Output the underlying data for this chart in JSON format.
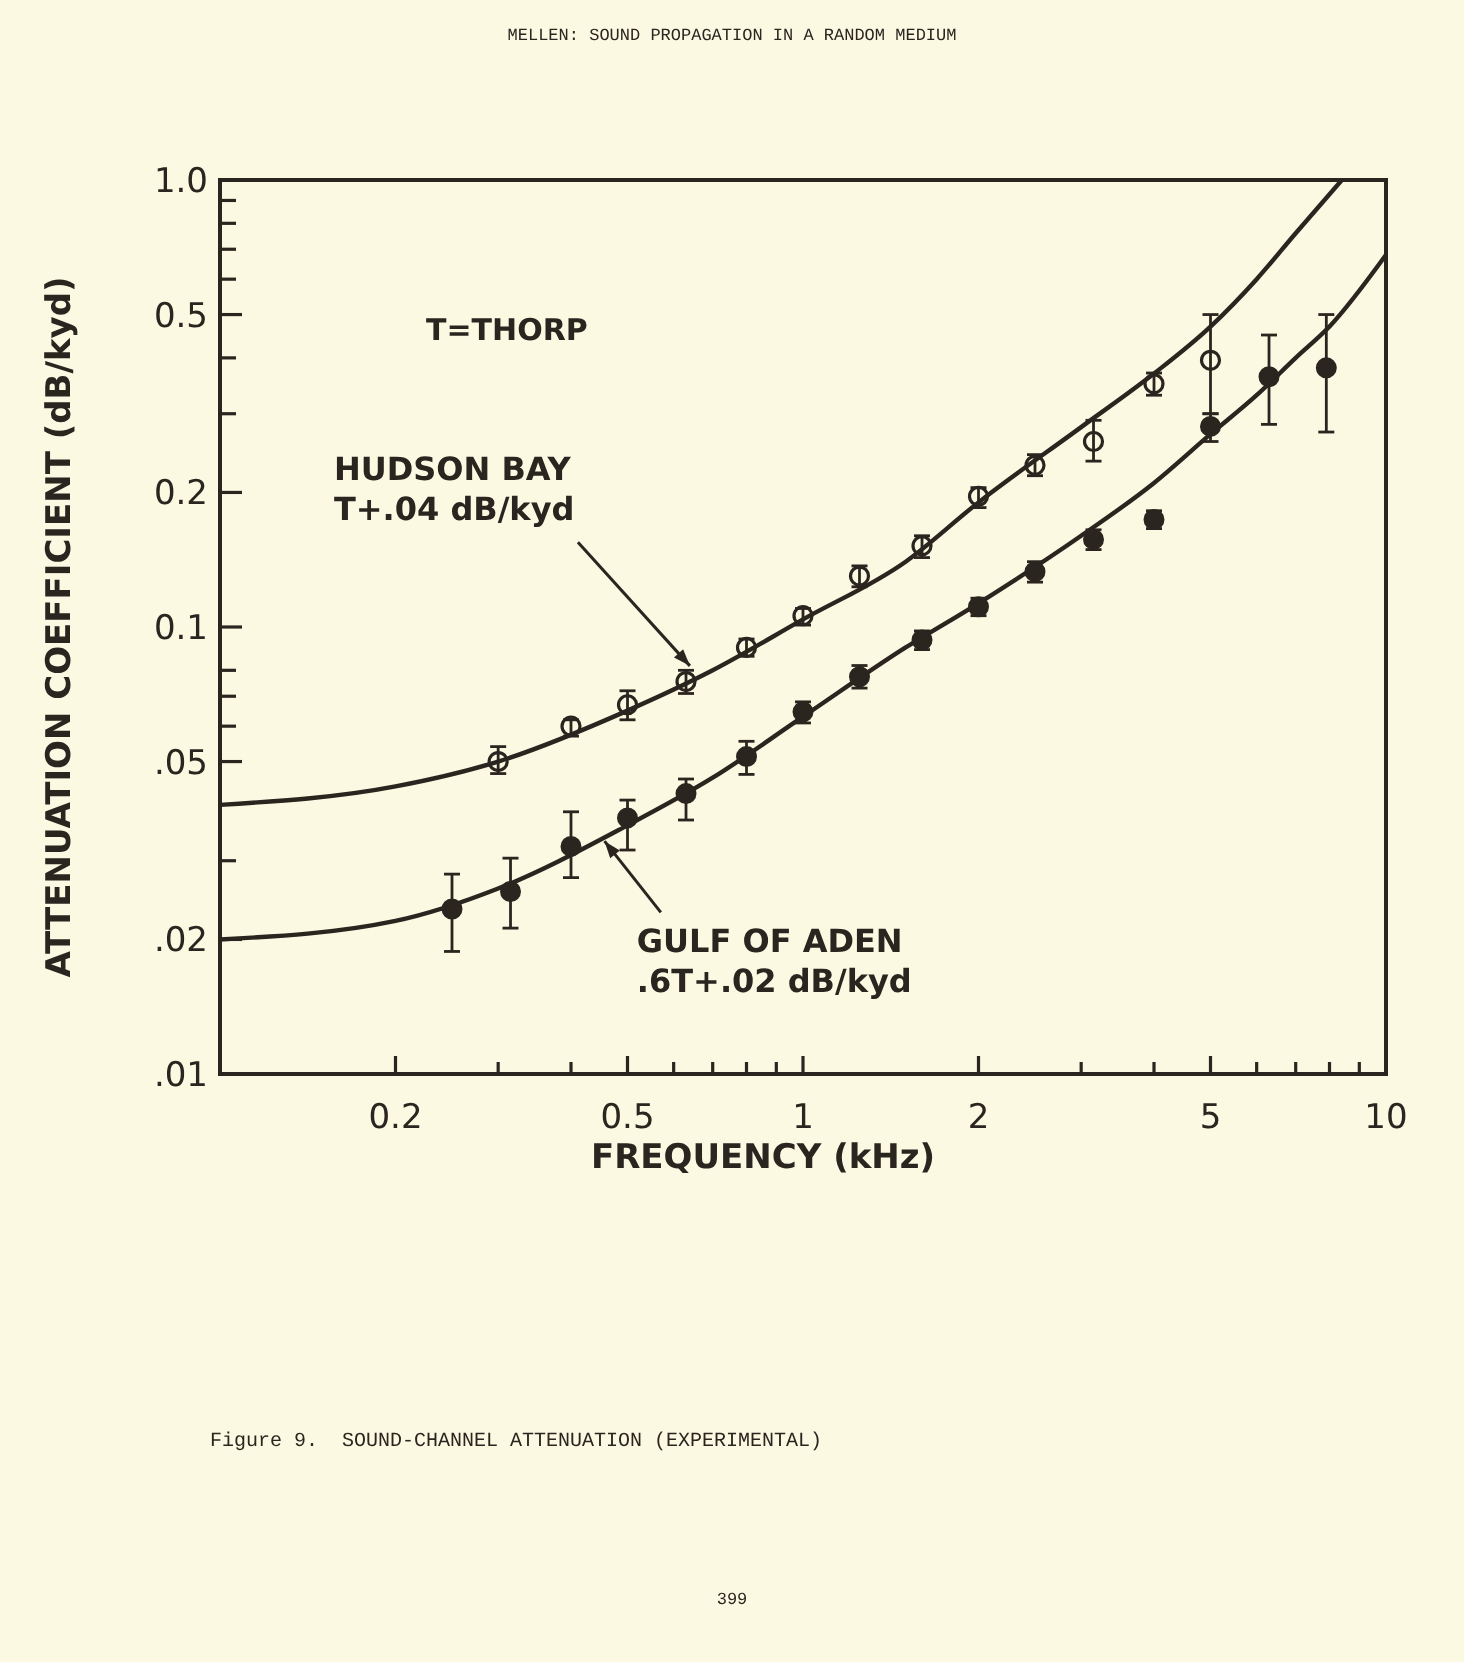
{
  "chart_data": {
    "type": "scatter",
    "title": "Figure 9.  SOUND-CHANNEL ATTENUATION (EXPERIMENTAL)",
    "xlabel": "FREQUENCY (kHz)",
    "ylabel": "ATTENUATION COEFFICIENT (dB/kyd)",
    "log": "xy",
    "grid": false,
    "xlim": [
      0.1,
      10
    ],
    "ylim": [
      0.01,
      1.0
    ],
    "xticks": [
      {
        "value": 0.2,
        "label": "0.2"
      },
      {
        "value": 0.3,
        "label": null
      },
      {
        "value": 0.4,
        "label": null
      },
      {
        "value": 0.5,
        "label": "0.5"
      },
      {
        "value": 0.6,
        "label": null
      },
      {
        "value": 0.7,
        "label": null
      },
      {
        "value": 0.8,
        "label": null
      },
      {
        "value": 0.9,
        "label": null
      },
      {
        "value": 1,
        "label": "1"
      },
      {
        "value": 2,
        "label": "2"
      },
      {
        "value": 3,
        "label": null
      },
      {
        "value": 4,
        "label": null
      },
      {
        "value": 5,
        "label": "5"
      },
      {
        "value": 6,
        "label": null
      },
      {
        "value": 7,
        "label": null
      },
      {
        "value": 8,
        "label": null
      },
      {
        "value": 9,
        "label": null
      },
      {
        "value": 10,
        "label": "10"
      }
    ],
    "yticks": [
      {
        "value": 0.01,
        "label": ".01"
      },
      {
        "value": 0.02,
        "label": ".02"
      },
      {
        "value": 0.03,
        "label": null
      },
      {
        "value": 0.05,
        "label": ".05"
      },
      {
        "value": 0.06,
        "label": null
      },
      {
        "value": 0.07,
        "label": null
      },
      {
        "value": 0.08,
        "label": null
      },
      {
        "value": 0.1,
        "label": "0.1"
      },
      {
        "value": 0.2,
        "label": "0.2"
      },
      {
        "value": 0.3,
        "label": null
      },
      {
        "value": 0.4,
        "label": null
      },
      {
        "value": 0.5,
        "label": "0.5"
      },
      {
        "value": 0.6,
        "label": null
      },
      {
        "value": 0.7,
        "label": null
      },
      {
        "value": 0.8,
        "label": null
      },
      {
        "value": 0.9,
        "label": null
      },
      {
        "value": 1.0,
        "label": "1.0"
      }
    ],
    "series": [
      {
        "type": "line",
        "color": "#2b2520",
        "line_style": "solid",
        "x": [
          0.1,
          0.2,
          0.3,
          0.5,
          0.7,
          1,
          1.5,
          2,
          3,
          4,
          5,
          6,
          7,
          8.4
        ],
        "values": [
          0.04,
          0.044,
          0.05,
          0.065,
          0.08,
          0.104,
          0.14,
          0.19,
          0.28,
          0.369,
          0.47,
          0.6,
          0.76,
          1.0
        ]
      },
      {
        "type": "line",
        "color": "#2b2520",
        "line_style": "solid",
        "x": [
          0.1,
          0.2,
          0.3,
          0.5,
          0.7,
          1,
          1.5,
          2,
          3,
          4,
          5,
          6,
          7,
          8,
          10
        ],
        "values": [
          0.02,
          0.022,
          0.026,
          0.036,
          0.046,
          0.063,
          0.09,
          0.113,
          0.16,
          0.21,
          0.27,
          0.33,
          0.4,
          0.47,
          0.68
        ]
      },
      {
        "type": "scatter",
        "color": "#2b2520",
        "marker": "circle-open",
        "x": [
          0.3,
          0.4,
          0.5,
          0.63,
          0.8,
          1,
          1.25,
          1.6,
          2,
          2.5,
          3.15,
          4,
          5
        ],
        "values": [
          0.05,
          0.06,
          0.067,
          0.0755,
          0.09,
          0.106,
          0.13,
          0.152,
          0.196,
          0.23,
          0.26,
          0.35,
          0.395
        ],
        "errors": [
          [
            0.047,
            0.054
          ],
          [
            0.057,
            0.062
          ],
          [
            0.062,
            0.072
          ],
          [
            0.071,
            0.08
          ],
          [
            0.086,
            0.094
          ],
          [
            0.101,
            0.11
          ],
          [
            0.123,
            0.137
          ],
          [
            0.143,
            0.16
          ],
          [
            0.185,
            0.205
          ],
          [
            0.218,
            0.243
          ],
          [
            0.235,
            0.29
          ],
          [
            0.33,
            0.37
          ],
          [
            0.3,
            0.5
          ]
        ]
      },
      {
        "type": "scatter",
        "color": "#2b2520",
        "marker": "circle",
        "x": [
          0.25,
          0.315,
          0.4,
          0.5,
          0.63,
          0.8,
          1,
          1.25,
          1.6,
          2,
          2.5,
          3.15,
          4,
          5,
          6.3,
          7.9
        ],
        "values": [
          0.0234,
          0.0256,
          0.0323,
          0.0374,
          0.0424,
          0.0513,
          0.0646,
          0.0774,
          0.0935,
          0.111,
          0.133,
          0.157,
          0.174,
          0.281,
          0.363,
          0.38
        ],
        "errors": [
          [
            0.0188,
            0.028
          ],
          [
            0.0212,
            0.0304
          ],
          [
            0.0275,
            0.0386
          ],
          [
            0.0317,
            0.041
          ],
          [
            0.037,
            0.0457
          ],
          [
            0.0468,
            0.0555
          ],
          [
            0.061,
            0.068
          ],
          [
            0.073,
            0.082
          ],
          [
            0.089,
            0.098
          ],
          [
            0.106,
            0.116
          ],
          [
            0.126,
            0.14
          ],
          [
            0.149,
            0.165
          ],
          [
            0.166,
            0.182
          ],
          [
            0.26,
            0.3
          ],
          [
            0.284,
            0.45
          ],
          [
            0.273,
            0.5
          ]
        ]
      }
    ],
    "annotations": [
      "MELLEN:  SOUND PROPAGATION IN A RANDOM MEDIUM",
      "T=THORP",
      {
        "text": "HUDSON BAY\nT+.04 dB/kyd",
        "x": 0.65,
        "y": 0.08
      },
      {
        "text": "GULF OF ADEN\n.6T+.02 dB/kyd",
        "x": 0.45,
        "y": 0.034
      },
      "399"
    ]
  }
}
